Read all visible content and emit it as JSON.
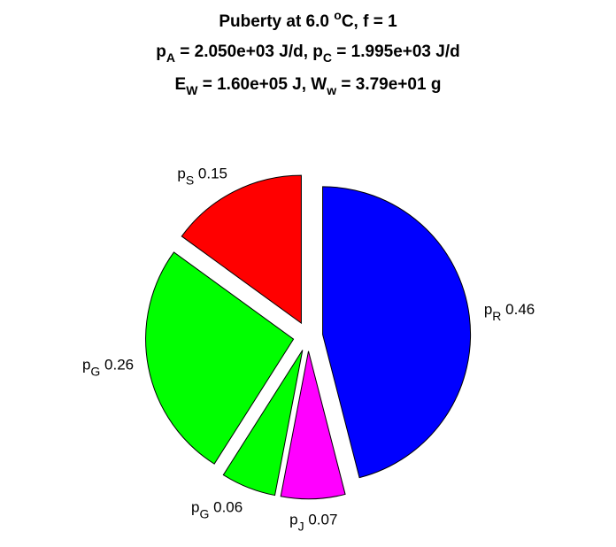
{
  "chart_data": {
    "type": "pie",
    "title": [
      [
        {
          "text": "Puberty at 6.0 "
        },
        {
          "text": "o",
          "shift": "sup"
        },
        {
          "text": "C, f = 1"
        }
      ],
      [
        {
          "text": "p"
        },
        {
          "text": "A",
          "shift": "sub"
        },
        {
          "text": " = 2.050e+03 J/d,  p"
        },
        {
          "text": "C",
          "shift": "sub"
        },
        {
          "text": " = 1.995e+03 J/d"
        }
      ],
      [
        {
          "text": "E"
        },
        {
          "text": "W",
          "shift": "sub"
        },
        {
          "text": " = 1.60e+05 J, W"
        },
        {
          "text": "w",
          "shift": "sub"
        },
        {
          "text": " = 3.79e+01 g"
        }
      ]
    ],
    "categories": [
      {
        "text": "p",
        "sub": "R"
      },
      {
        "text": "p",
        "sub": "J"
      },
      {
        "text": "p",
        "sub": "G"
      },
      {
        "text": "p",
        "sub": "G"
      },
      {
        "text": "p",
        "sub": "S"
      }
    ],
    "values": [
      0.46,
      0.07,
      0.06,
      0.26,
      0.15
    ],
    "colors": [
      "#0000ff",
      "#ff00ff",
      "#00ff00",
      "#00ff00",
      "#ff0000"
    ],
    "exploded": true,
    "direction": "clockwise"
  }
}
